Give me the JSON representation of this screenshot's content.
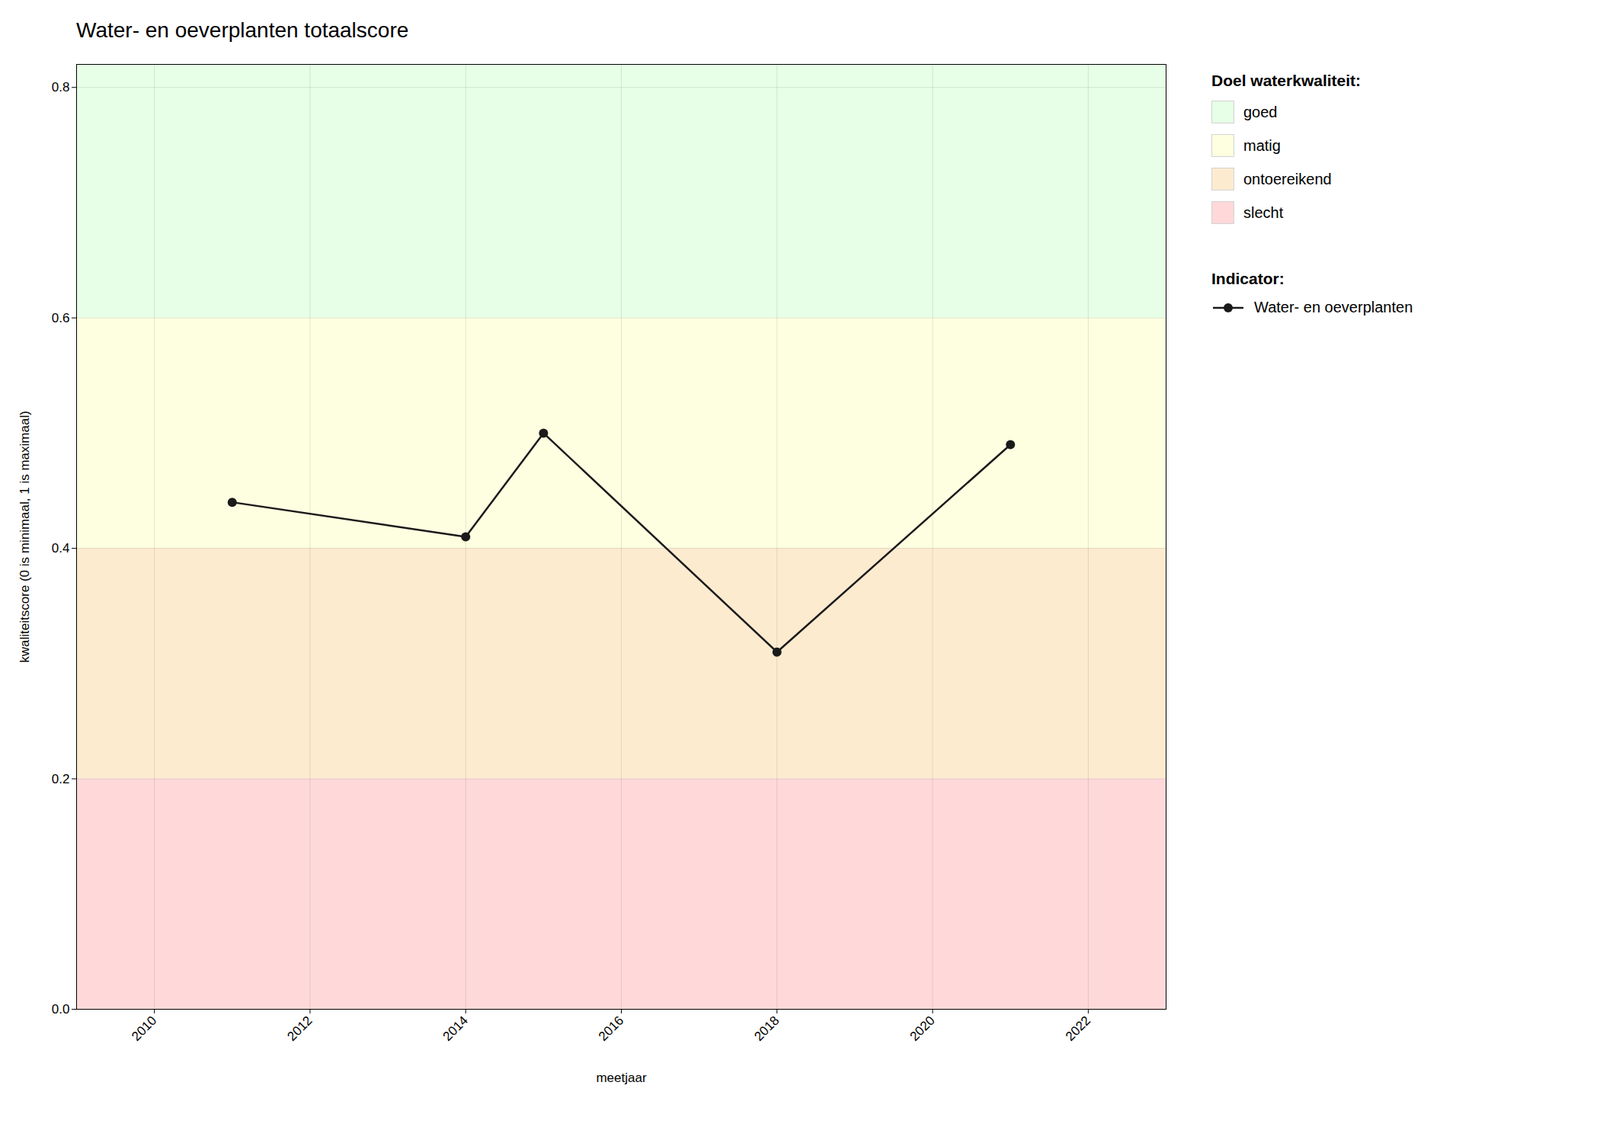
{
  "chart_data": {
    "type": "line",
    "title": "Water- en oeverplanten totaalscore",
    "x_label": "meetjaar",
    "y_label": "kwaliteitscore (0 is minimaal, 1 is maximaal)",
    "x": [
      2011,
      2014,
      2015,
      2018,
      2021
    ],
    "series": [
      {
        "name": "Water- en oeverplanten",
        "color": "#1a1a1a",
        "marker": "circle",
        "line_style": "solid",
        "values": [
          0.44,
          0.41,
          0.5,
          0.31,
          0.49
        ]
      }
    ],
    "xlim": [
      2009,
      2023
    ],
    "xticks": [
      2010,
      2012,
      2014,
      2016,
      2018,
      2020,
      2022
    ],
    "ylim": [
      0.0,
      0.82
    ],
    "yticks": [
      {
        "value": 0,
        "label": "0.0"
      },
      0.2,
      0.4,
      0.6,
      0.8
    ],
    "grid": true,
    "legend": "right",
    "zones_title": "Doel waterkwaliteit:",
    "zones": [
      {
        "name": "goed",
        "ymin": 0.6,
        "ymax": 0.82,
        "color": "#E6FFE6"
      },
      {
        "name": "matig",
        "ymin": 0.4,
        "ymax": 0.6,
        "color": "#FEFEE0"
      },
      {
        "name": "ontoereikend",
        "ymin": 0.2,
        "ymax": 0.4,
        "color": "#FDEBD0"
      },
      {
        "name": "slecht",
        "ymin": 0.0,
        "ymax": 0.2,
        "color": "#FFD9D9"
      }
    ],
    "series_title": "Indicator:"
  }
}
